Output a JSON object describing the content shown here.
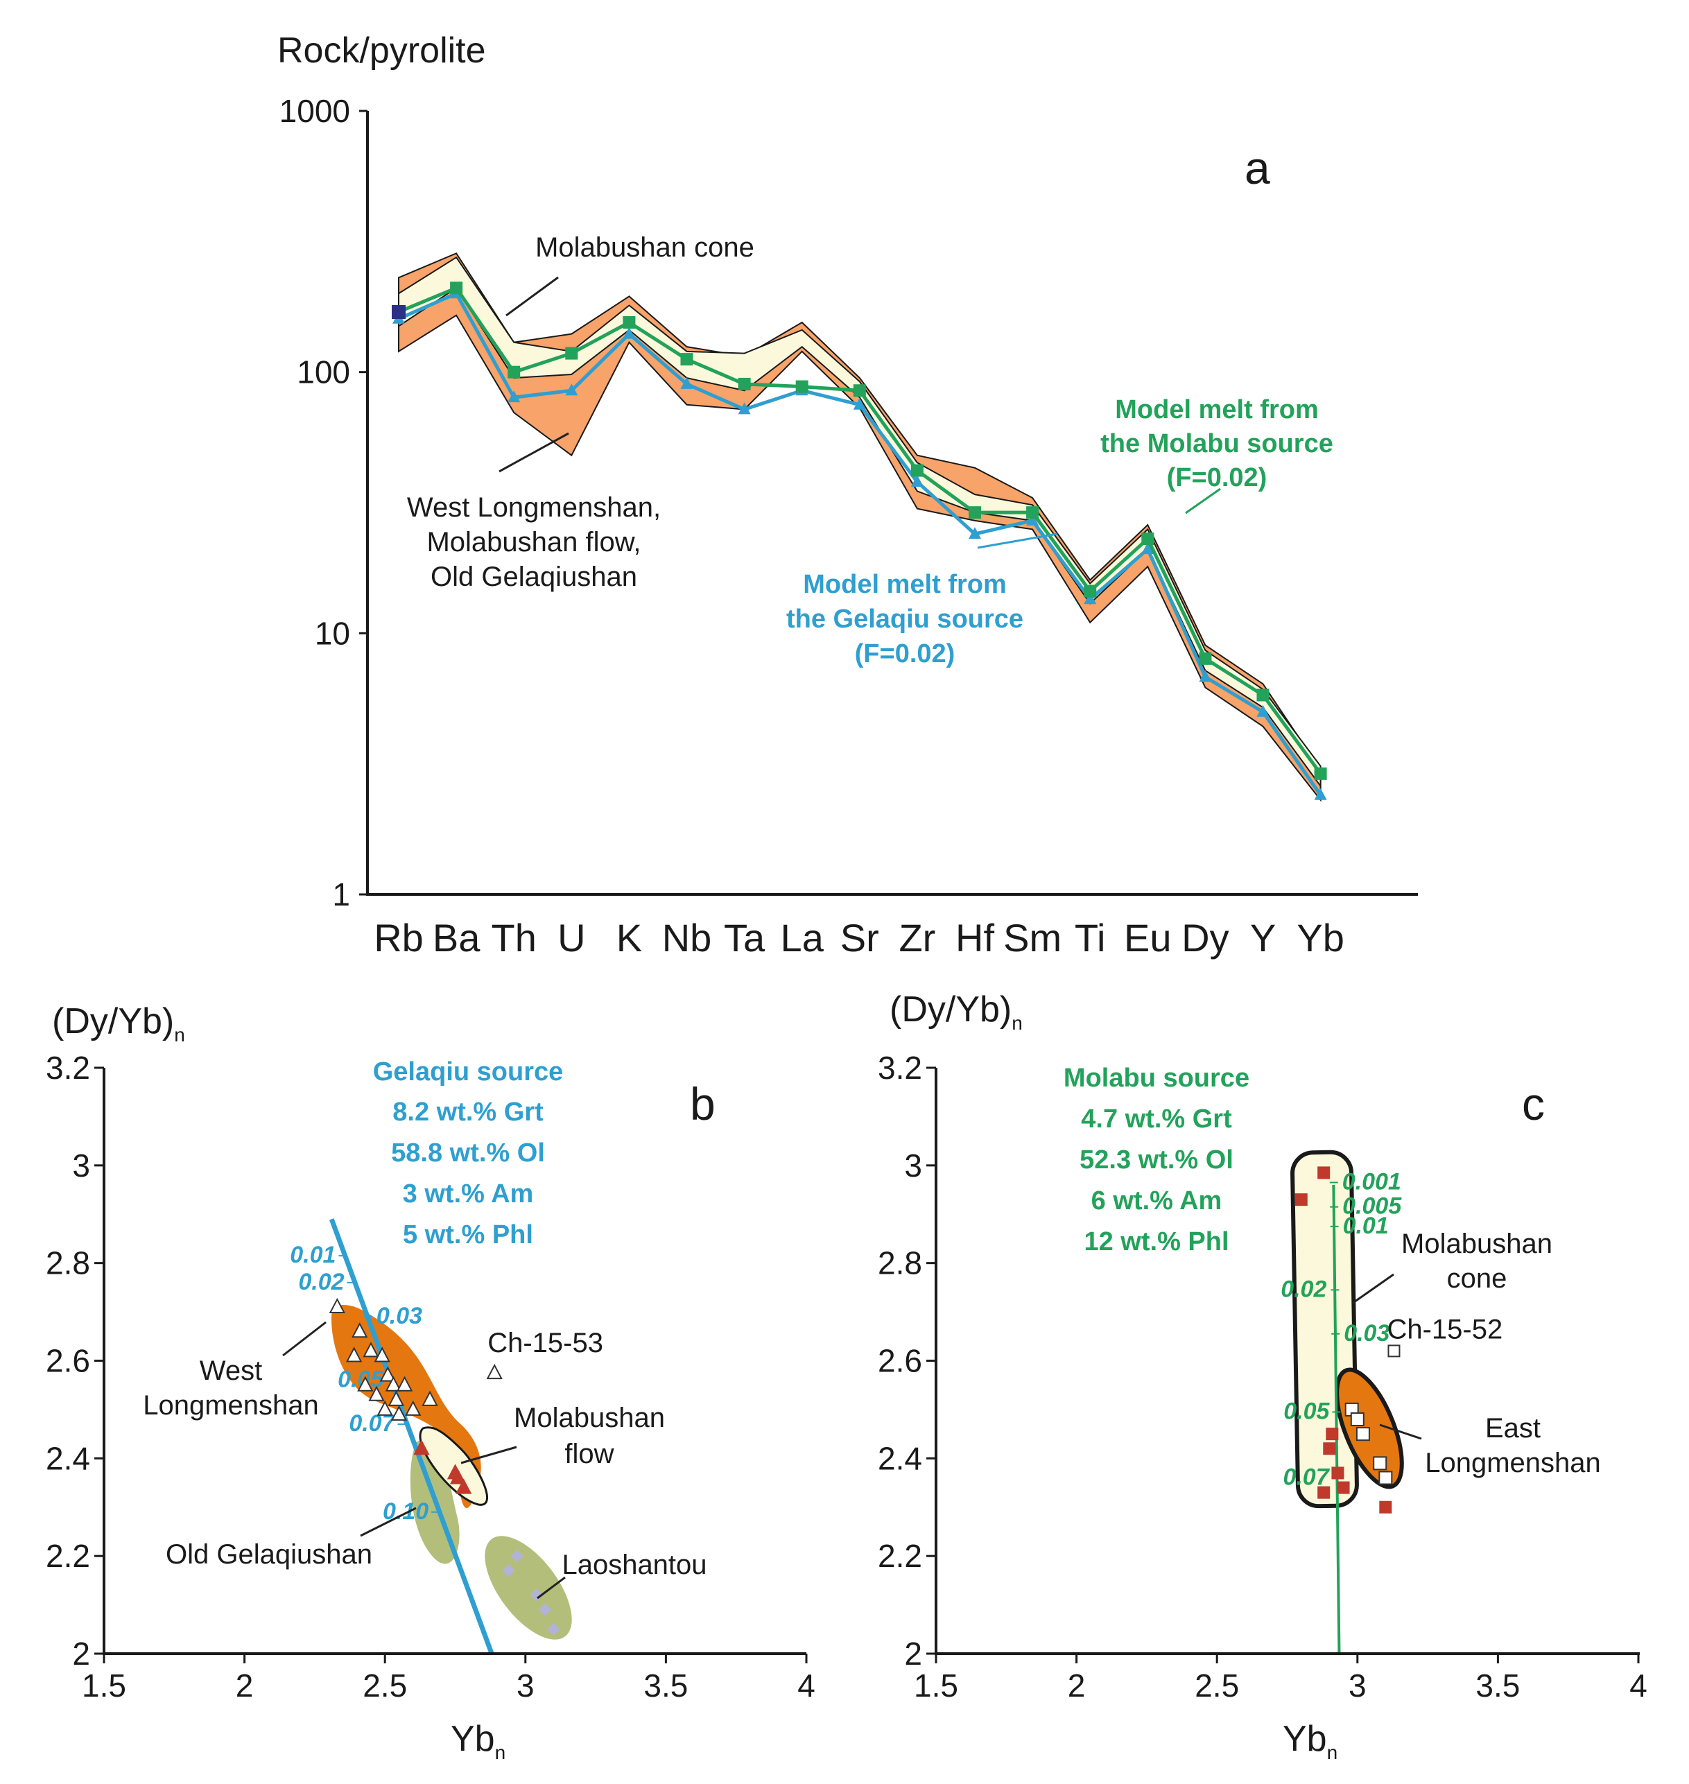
{
  "colors": {
    "gelaqiu": "#2e9fd0",
    "molabu": "#22a25a",
    "orange": "#f7a36a",
    "orangeDark": "#e57710",
    "cream": "#fbf8dc",
    "olive": "#b4be7b",
    "red": "#c0392b",
    "navy": "#2b2f86",
    "lavender": "#b1b3d9"
  },
  "chart_data": [
    {
      "panel": "a",
      "type": "line",
      "ylabel": "Rock/pyrolite",
      "yscale": "log",
      "ylim": [
        1,
        1000
      ],
      "yticks": [
        "1",
        "10",
        "100",
        "1000"
      ],
      "categories": [
        "Rb",
        "Ba",
        "Th",
        "U",
        "K",
        "Nb",
        "Ta",
        "La",
        "Sr",
        "Zr",
        "Hf",
        "Sm",
        "Ti",
        "Eu",
        "Dy",
        "Y",
        "Yb"
      ],
      "series": [
        {
          "name": "Model melt from the Gelaqiu source (F=0.02)",
          "values": [
            160,
            200,
            80,
            85,
            140,
            90,
            72,
            85,
            75,
            38,
            24,
            27,
            13.5,
            21,
            6.8,
            5,
            2.4
          ]
        },
        {
          "name": "Model melt from the Molabu source (F=0.02)",
          "values": [
            170,
            210,
            100,
            118,
            155,
            112,
            90,
            88,
            85,
            42,
            29,
            29,
            14.5,
            23,
            8,
            5.8,
            2.9
          ]
        }
      ],
      "bands": [
        {
          "name": "West Longmenshan, Molabushan flow, Old Gelaqiushan",
          "upper": [
            230,
            285,
            130,
            140,
            195,
            125,
            115,
            155,
            95,
            48,
            43,
            33,
            16,
            26,
            9,
            6.4,
            3.0
          ],
          "lower": [
            120,
            165,
            70,
            48,
            130,
            75,
            72,
            120,
            73,
            30,
            27,
            25,
            11,
            18,
            6.2,
            4.4,
            2.3
          ]
        },
        {
          "name": "Molabushan cone",
          "upper": [
            200,
            275,
            130,
            120,
            180,
            120,
            118,
            145,
            92,
            45,
            34,
            31,
            15.5,
            25,
            8.6,
            6.1,
            3.1
          ],
          "lower": [
            150,
            210,
            95,
            98,
            145,
            95,
            85,
            125,
            80,
            35,
            29,
            27,
            13,
            21,
            7.2,
            5.2,
            2.6
          ]
        }
      ],
      "annotations": [
        "Molabushan cone",
        "West Longmenshan,",
        "Molabushan flow,",
        "Old Gelaqiushan",
        "Model melt from",
        "the Molabu source",
        "(F=0.02)",
        "Model melt from",
        "the Gelaqiu source",
        "(F=0.02)"
      ]
    },
    {
      "panel": "b",
      "type": "scatter",
      "xlabel": "Yb",
      "xlabel_sub": "n",
      "ylabel": "(Dy/Yb)",
      "ylabel_sub": "n",
      "xlim": [
        1.5,
        4
      ],
      "ylim": [
        2,
        3.2
      ],
      "xticks": [
        "1.5",
        "2",
        "2.5",
        "3",
        "3.5",
        "4"
      ],
      "yticks": [
        "2",
        "2.2",
        "2.4",
        "2.6",
        "2.8",
        "3",
        "3.2"
      ],
      "source_title": "Gelaqiu source",
      "source_lines": [
        "8.2 wt.% Grt",
        "58.8 wt.% Ol",
        "3 wt.% Am",
        "5 wt.% Phl"
      ],
      "model_curve": {
        "x": [
          2.31,
          2.88
        ],
        "y": [
          2.89,
          2.0
        ]
      },
      "melt_fractions": [
        {
          "label": "0.01",
          "x": 2.35,
          "y": 2.815
        },
        {
          "label": "0.02",
          "x": 2.38,
          "y": 2.76
        },
        {
          "label": "0.03",
          "x": 2.44,
          "y": 2.69
        },
        {
          "label": "0.05",
          "x": 2.52,
          "y": 2.56
        },
        {
          "label": "0.07",
          "x": 2.56,
          "y": 2.47
        },
        {
          "label": "0.10",
          "x": 2.68,
          "y": 2.29
        }
      ],
      "points_west_longmenshan": {
        "x": [
          2.33,
          2.39,
          2.41,
          2.43,
          2.45,
          2.47,
          2.49,
          2.5,
          2.51,
          2.53,
          2.54,
          2.55,
          2.57,
          2.6,
          2.66
        ],
        "y": [
          2.71,
          2.61,
          2.66,
          2.55,
          2.62,
          2.53,
          2.61,
          2.5,
          2.57,
          2.55,
          2.52,
          2.49,
          2.55,
          2.5,
          2.52
        ]
      },
      "points_molabushan_flow": {
        "x": [
          2.63,
          2.75,
          2.76,
          2.78
        ],
        "y": [
          2.42,
          2.37,
          2.36,
          2.34
        ]
      },
      "points_laoshantou": {
        "x": [
          2.94,
          2.97,
          3.04,
          3.07,
          3.1
        ],
        "y": [
          2.17,
          2.2,
          2.12,
          2.09,
          2.05
        ]
      },
      "point_ch_15_53": {
        "x": 2.89,
        "y": 2.575,
        "label": "Ch-15-53"
      },
      "field_labels": [
        "West",
        "Longmenshan",
        "Molabushan",
        "flow",
        "Old Gelaqiushan",
        "Laoshantou"
      ]
    },
    {
      "panel": "c",
      "type": "scatter",
      "xlabel": "Yb",
      "xlabel_sub": "n",
      "ylabel": "(Dy/Yb)",
      "ylabel_sub": "n",
      "xlim": [
        1.5,
        4
      ],
      "ylim": [
        2,
        3.2
      ],
      "xticks": [
        "1.5",
        "2",
        "2.5",
        "3",
        "3.5",
        "4"
      ],
      "yticks": [
        "2",
        "2.2",
        "2.4",
        "2.6",
        "2.8",
        "3",
        "3.2"
      ],
      "source_title": "Molabu source",
      "source_lines": [
        "4.7 wt.% Grt",
        "52.3 wt.% Ol",
        "6 wt.% Am",
        "12 wt.% Phl"
      ],
      "model_curve": {
        "x": [
          2.915,
          2.935
        ],
        "y": [
          2.96,
          2.0
        ]
      },
      "melt_fractions": [
        {
          "label": "0.001",
          "x": 2.916,
          "y": 2.965
        },
        {
          "label": "0.005",
          "x": 2.917,
          "y": 2.915
        },
        {
          "label": "0.01",
          "x": 2.918,
          "y": 2.875
        },
        {
          "label": "0.02",
          "x": 2.92,
          "y": 2.745
        },
        {
          "label": "0.03",
          "x": 2.922,
          "y": 2.655
        },
        {
          "label": "0.05",
          "x": 2.925,
          "y": 2.495
        },
        {
          "label": "0.07",
          "x": 2.928,
          "y": 2.36
        }
      ],
      "points_molabushan_cone": {
        "x": [
          2.8,
          2.88,
          2.88,
          2.9,
          2.91,
          2.93,
          2.95
        ],
        "y": [
          2.93,
          2.985,
          2.33,
          2.42,
          2.45,
          2.37,
          2.34
        ]
      },
      "points_east_longmenshan": {
        "x": [
          2.98,
          3.0,
          3.02,
          3.08,
          3.1
        ],
        "y": [
          2.5,
          2.48,
          2.45,
          2.39,
          2.36
        ]
      },
      "point_extra_red": {
        "x": 3.1,
        "y": 2.3
      },
      "point_ch_15_52": {
        "x": 3.13,
        "y": 2.62,
        "label": "Ch-15-52"
      },
      "field_labels": [
        "Molabushan",
        "cone",
        "East",
        "Longmenshan"
      ]
    }
  ]
}
